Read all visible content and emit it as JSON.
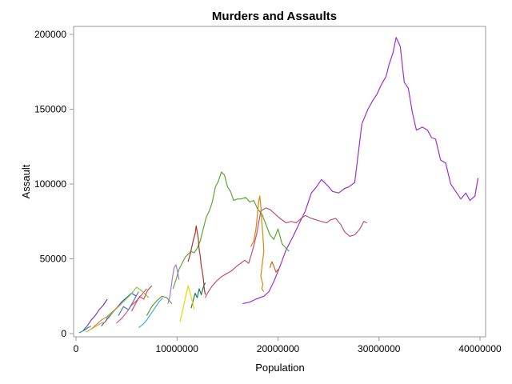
{
  "chart_data": {
    "type": "line",
    "title": "Murders and Assaults",
    "xlabel": "Population",
    "ylabel": "Assault",
    "xlim": [
      0,
      40000000
    ],
    "ylim": [
      0,
      200000
    ],
    "x_ticks": [
      "0",
      "10000000",
      "20000000",
      "30000000",
      "40000000"
    ],
    "y_ticks": [
      "0",
      "50000",
      "100000",
      "150000",
      "200000"
    ],
    "grid": false,
    "legend": "none",
    "series": [
      {
        "color": "#9b30d0",
        "x": [
          16500000,
          17200000,
          17800000,
          18600000,
          19100000,
          19600000,
          20200000,
          20800000,
          21500000,
          22200000,
          22700000,
          23300000,
          23800000,
          24300000,
          24900000,
          25400000,
          26000000,
          26600000,
          27000000,
          27600000,
          28300000,
          28900000,
          29400000,
          29800000,
          30200000,
          30700000,
          31000000,
          31400000,
          31700000,
          32100000,
          32500000,
          32900000,
          33300000,
          33700000,
          34300000,
          34800000,
          35200000,
          35600000,
          36100000,
          36600000,
          37100000,
          37600000,
          38100000,
          38600000,
          39000000,
          39500000,
          39800000
        ],
        "y": [
          20000,
          21000,
          23000,
          25000,
          28000,
          35000,
          45000,
          56000,
          65000,
          75000,
          82000,
          94000,
          98000,
          103000,
          99000,
          95000,
          94000,
          97000,
          98000,
          101000,
          140000,
          150000,
          156000,
          160000,
          166000,
          172000,
          180000,
          188000,
          198000,
          192000,
          168000,
          164000,
          148000,
          136000,
          138000,
          136000,
          131000,
          130000,
          116000,
          114000,
          100000,
          95000,
          90000,
          94000,
          89000,
          92000,
          104000
        ]
      },
      {
        "color": "#c2507a",
        "x": [
          12800000,
          13100000,
          13500000,
          13900000,
          14400000,
          14900000,
          15400000,
          15900000,
          16300000,
          16700000,
          17100000,
          17500000,
          17900000,
          18300000,
          18800000,
          19200000,
          19700000,
          20200000,
          20800000,
          21300000,
          21800000,
          22300000,
          22700000,
          23300000,
          23800000,
          24300000,
          24800000,
          25200000,
          25700000,
          26200000,
          26600000,
          27100000,
          27600000,
          28100000,
          28500000,
          28800000
        ],
        "y": [
          24000,
          28000,
          32000,
          35000,
          38000,
          40000,
          42000,
          45000,
          47000,
          49000,
          47000,
          56000,
          67000,
          82000,
          84000,
          83000,
          80000,
          77000,
          74000,
          75000,
          74000,
          77000,
          79000,
          77000,
          76000,
          75000,
          74000,
          76000,
          77000,
          73000,
          68000,
          65000,
          66000,
          70000,
          75000,
          74000
        ]
      },
      {
        "color": "#5aa832",
        "x": [
          9600000,
          9900000,
          10200000,
          10500000,
          10800000,
          11100000,
          11400000,
          11700000,
          12000000,
          12300000,
          12600000,
          12900000,
          13200000,
          13500000,
          13800000,
          14100000,
          14400000,
          14700000,
          15000000,
          15300000,
          15600000,
          16000000,
          16400000,
          16800000,
          17200000,
          17600000,
          18000000,
          18400000,
          18800000,
          19200000,
          19600000,
          20000000,
          20400000,
          20800000,
          21100000
        ],
        "y": [
          30000,
          36000,
          43000,
          47000,
          51000,
          53000,
          55000,
          54000,
          57000,
          62000,
          70000,
          78000,
          82000,
          88000,
          98000,
          102000,
          108000,
          106000,
          98000,
          95000,
          89000,
          90000,
          90000,
          91000,
          88000,
          89000,
          83000,
          80000,
          73000,
          66000,
          63000,
          70000,
          60000,
          57000,
          55000
        ]
      },
      {
        "color": "#d9860a",
        "x": [
          17300000,
          17600000,
          17800000,
          17900000,
          18000000,
          18100000,
          18200000,
          18300000,
          18400000,
          18500000,
          18600000,
          18400000,
          18300000,
          18500000,
          18400000,
          18600000
        ],
        "y": [
          58000,
          62000,
          69000,
          75000,
          83000,
          89000,
          92000,
          85000,
          74000,
          66000,
          55000,
          44000,
          38000,
          33000,
          30000,
          28000
        ]
      },
      {
        "color": "#c66a12",
        "x": [
          19200000,
          19400000,
          19600000,
          19800000,
          20000000
        ],
        "y": [
          44000,
          48000,
          45000,
          41000,
          43000
        ]
      },
      {
        "color": "#b0342a",
        "x": [
          11100000,
          11300000,
          11500000,
          11600000,
          11800000,
          11900000,
          12100000,
          12200000,
          12300000,
          12400000,
          12500000,
          12600000,
          12700000,
          12800000
        ],
        "y": [
          48000,
          53000,
          59000,
          62000,
          67000,
          72000,
          64000,
          56000,
          52000,
          45000,
          42000,
          37000,
          30000,
          26000
        ]
      },
      {
        "color": "#a078e0",
        "x": [
          9100000,
          9300000,
          9500000,
          9700000,
          9900000,
          10100000,
          10200000
        ],
        "y": [
          20000,
          25000,
          35000,
          44000,
          46000,
          40000,
          36000
        ]
      },
      {
        "color": "#1f7a52",
        "x": [
          11400000,
          11600000,
          11800000,
          12000000,
          12200000,
          12400000,
          12600000,
          12800000
        ],
        "y": [
          17000,
          22000,
          27000,
          24000,
          30000,
          26000,
          31000,
          34000
        ]
      },
      {
        "color": "#e6d800",
        "x": [
          10300000,
          10500000,
          10700000,
          10900000,
          11100000,
          11300000,
          11500000,
          11700000
        ],
        "y": [
          8000,
          14000,
          20000,
          26000,
          32000,
          27000,
          22000,
          16000
        ]
      },
      {
        "color": "#3daee0",
        "x": [
          6200000,
          6600000,
          7000000,
          7400000,
          7800000,
          8200000,
          8600000
        ],
        "y": [
          4000,
          6000,
          9000,
          13000,
          17000,
          21000,
          24000
        ]
      },
      {
        "color": "#e04aa0",
        "x": [
          4000000,
          4500000,
          5000000,
          5500000,
          6000000,
          6500000,
          7000000
        ],
        "y": [
          7000,
          10000,
          14000,
          19000,
          22000,
          26000,
          30000
        ]
      },
      {
        "color": "#2f5cd6",
        "x": [
          2500000,
          3000000,
          3500000,
          4000000,
          4500000,
          5000000,
          5500000,
          6000000
        ],
        "y": [
          5000,
          9000,
          13000,
          17000,
          21000,
          24000,
          27000,
          25000
        ]
      },
      {
        "color": "#8fc23a",
        "x": [
          3000000,
          3600000,
          4200000,
          4800000,
          5400000,
          6000000,
          6600000,
          7200000
        ],
        "y": [
          10000,
          14000,
          18000,
          22000,
          26000,
          31000,
          28000,
          24000
        ]
      },
      {
        "color": "#c28a52",
        "x": [
          1500000,
          2000000,
          2500000,
          3000000,
          3500000,
          4000000,
          4500000
        ],
        "y": [
          3000,
          6000,
          9000,
          11000,
          14000,
          17000,
          20000
        ]
      },
      {
        "color": "#7f3ab8",
        "x": [
          700000,
          1100000,
          1500000,
          1900000,
          2300000,
          2700000,
          3100000
        ],
        "y": [
          2000,
          5000,
          9000,
          12000,
          16000,
          19000,
          23000
        ]
      },
      {
        "color": "#d84b4b",
        "x": [
          5500000,
          5900000,
          6300000,
          6700000,
          7100000,
          7500000
        ],
        "y": [
          15000,
          20000,
          25000,
          23000,
          29000,
          32000
        ]
      },
      {
        "color": "#16a09a",
        "x": [
          300000,
          600000,
          900000,
          1200000,
          1500000
        ],
        "y": [
          500,
          1500,
          2500,
          4000,
          5000
        ]
      },
      {
        "color": "#6b9a2e",
        "x": [
          7000000,
          7500000,
          8000000,
          8500000,
          9000000,
          9500000
        ],
        "y": [
          12000,
          18000,
          22000,
          25000,
          24000,
          20000
        ]
      },
      {
        "color": "#f0a032",
        "x": [
          1000000,
          1500000,
          2000000,
          2500000,
          3000000
        ],
        "y": [
          1000,
          3000,
          5000,
          7000,
          8000
        ]
      },
      {
        "color": "#4682b4",
        "x": [
          4200000,
          4700000,
          5200000,
          5700000,
          6200000
        ],
        "y": [
          12000,
          18000,
          16000,
          22000,
          28000
        ]
      }
    ]
  }
}
